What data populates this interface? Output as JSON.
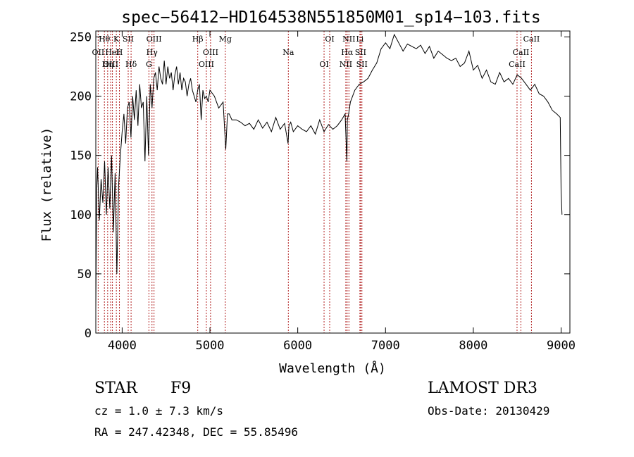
{
  "chart_data": {
    "type": "line",
    "title": "spec−56412−HD164538N551850M01_sp14−103.fits",
    "xlabel": "Wavelength (Å)",
    "ylabel": "Flux (relative)",
    "xlim": [
      3700,
      9100
    ],
    "ylim": [
      0,
      255
    ],
    "xticks": [
      4000,
      5000,
      6000,
      7000,
      8000,
      9000
    ],
    "yticks": [
      0,
      50,
      100,
      150,
      200,
      250
    ],
    "grid": false,
    "series": [
      {
        "name": "flux",
        "x": [
          3700,
          3710,
          3720,
          3740,
          3760,
          3780,
          3800,
          3820,
          3840,
          3860,
          3880,
          3900,
          3920,
          3940,
          3960,
          3980,
          4000,
          4020,
          4040,
          4060,
          4080,
          4100,
          4120,
          4140,
          4160,
          4180,
          4200,
          4220,
          4240,
          4260,
          4280,
          4300,
          4320,
          4340,
          4360,
          4380,
          4400,
          4420,
          4440,
          4460,
          4480,
          4500,
          4520,
          4540,
          4560,
          4580,
          4600,
          4620,
          4640,
          4660,
          4680,
          4700,
          4720,
          4740,
          4760,
          4780,
          4800,
          4820,
          4840,
          4860,
          4880,
          4900,
          4920,
          4940,
          4960,
          4980,
          5000,
          5050,
          5100,
          5150,
          5180,
          5200,
          5220,
          5250,
          5300,
          5350,
          5400,
          5450,
          5500,
          5550,
          5600,
          5650,
          5700,
          5750,
          5800,
          5850,
          5890,
          5900,
          5920,
          5950,
          6000,
          6050,
          6100,
          6150,
          6200,
          6250,
          6300,
          6350,
          6400,
          6450,
          6500,
          6540,
          6560,
          6565,
          6580,
          6600,
          6650,
          6700,
          6750,
          6800,
          6850,
          6900,
          6950,
          7000,
          7050,
          7100,
          7150,
          7200,
          7250,
          7300,
          7350,
          7400,
          7450,
          7500,
          7550,
          7600,
          7650,
          7700,
          7750,
          7800,
          7850,
          7900,
          7950,
          8000,
          8050,
          8100,
          8150,
          8200,
          8250,
          8300,
          8350,
          8400,
          8450,
          8500,
          8550,
          8600,
          8650,
          8700,
          8750,
          8800,
          8850,
          8900,
          8950,
          8990,
          9000,
          9010
        ],
        "values": [
          20,
          120,
          140,
          95,
          130,
          110,
          145,
          100,
          140,
          105,
          150,
          85,
          135,
          50,
          125,
          150,
          170,
          185,
          160,
          190,
          195,
          165,
          200,
          180,
          205,
          175,
          210,
          190,
          195,
          145,
          200,
          150,
          210,
          190,
          215,
          220,
          205,
          225,
          215,
          210,
          230,
          210,
          225,
          215,
          220,
          205,
          218,
          225,
          210,
          220,
          205,
          215,
          212,
          200,
          210,
          215,
          205,
          200,
          195,
          205,
          210,
          180,
          205,
          198,
          200,
          195,
          205,
          200,
          190,
          195,
          155,
          185,
          185,
          180,
          180,
          178,
          175,
          177,
          172,
          180,
          173,
          178,
          170,
          182,
          172,
          177,
          160,
          175,
          178,
          170,
          175,
          172,
          170,
          175,
          168,
          180,
          170,
          176,
          172,
          175,
          180,
          185,
          145,
          180,
          185,
          195,
          205,
          210,
          212,
          215,
          222,
          228,
          240,
          245,
          240,
          252,
          245,
          238,
          244,
          242,
          240,
          243,
          236,
          242,
          232,
          238,
          235,
          232,
          230,
          232,
          225,
          228,
          238,
          222,
          226,
          215,
          222,
          212,
          210,
          220,
          212,
          215,
          210,
          218,
          215,
          210,
          205,
          210,
          202,
          200,
          195,
          188,
          185,
          182,
          120,
          100
        ]
      }
    ],
    "lines": [
      {
        "label": "Hθ",
        "x": 3798
      },
      {
        "label": "OII",
        "x": 3727
      },
      {
        "label": "OIII",
        "x": 3869
      },
      {
        "label": "K",
        "x": 3934
      },
      {
        "label": "HeI",
        "x": 3889
      },
      {
        "label": "Hη",
        "x": 3835
      },
      {
        "label": "SII",
        "x": 4069
      },
      {
        "label": "H",
        "x": 3969
      },
      {
        "label": "Hδ",
        "x": 4102
      },
      {
        "label": "OIII",
        "x": 4363
      },
      {
        "label": "Hγ",
        "x": 4340
      },
      {
        "label": "G",
        "x": 4305
      },
      {
        "label": "Hβ",
        "x": 4861
      },
      {
        "label": "OIII",
        "x": 5007
      },
      {
        "label": "OIII",
        "x": 4959
      },
      {
        "label": "Mg",
        "x": 5175
      },
      {
        "label": "Na",
        "x": 5893
      },
      {
        "label": "OI",
        "x": 6300
      },
      {
        "label": "OI",
        "x": 6364
      },
      {
        "label": "Hα",
        "x": 6563
      },
      {
        "label": "NII",
        "x": 6548
      },
      {
        "label": "NII",
        "x": 6583
      },
      {
        "label": "SII",
        "x": 6716
      },
      {
        "label": "SII",
        "x": 6731
      },
      {
        "label": "Li",
        "x": 6708
      },
      {
        "label": "CaII",
        "x": 8542
      },
      {
        "label": "CaII",
        "x": 8498
      },
      {
        "label": "CaII",
        "x": 8662
      }
    ]
  },
  "info": {
    "class": "STAR",
    "subclass": "F9",
    "survey": "LAMOST DR3",
    "cz": "cz = 1.0 ± 7.3 km/s",
    "obs_date": "Obs-Date: 20130429",
    "coords": "RA = 247.42348, DEC =  55.85496"
  }
}
